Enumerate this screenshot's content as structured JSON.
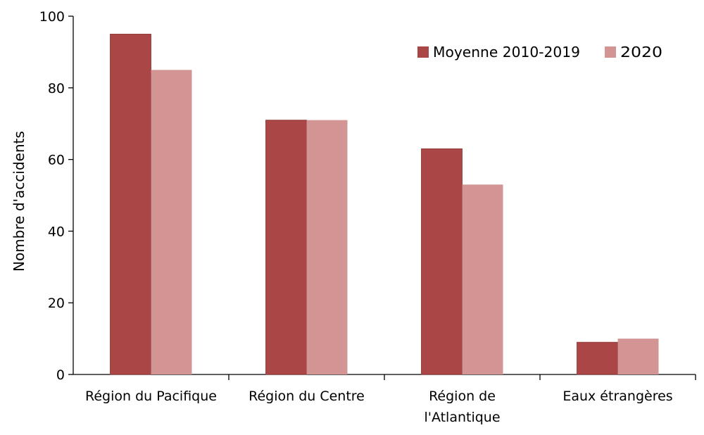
{
  "chart_data": {
    "type": "bar",
    "title": "",
    "xlabel": "",
    "ylabel": "Nombre d'accidents",
    "ylim": [
      0,
      100
    ],
    "yticks": [
      0,
      20,
      40,
      60,
      80,
      100
    ],
    "grid": false,
    "legend_position": "top-right",
    "categories": [
      [
        "Région du Pacifique"
      ],
      [
        "Région du Centre"
      ],
      [
        "Région de",
        "l'Atlantique"
      ],
      [
        "Eaux étrangères"
      ]
    ],
    "series": [
      {
        "name": "Moyenne 2010-2019",
        "color": "#ab4646",
        "values": [
          95,
          71,
          63,
          9
        ]
      },
      {
        "name": "2020",
        "color": "#d39494",
        "values": [
          85,
          71,
          53,
          10
        ]
      }
    ]
  }
}
